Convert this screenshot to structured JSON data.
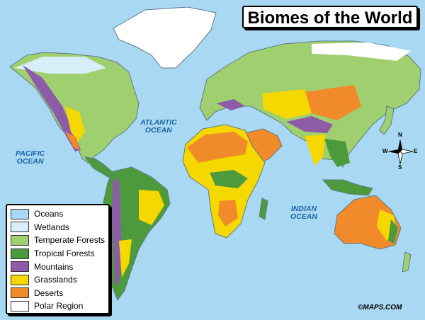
{
  "map": {
    "title": "Biomes of the World",
    "credit": "©MAPS.COM",
    "colors": {
      "ocean": "#a9d9f2",
      "wetlands": "#d8eef8",
      "temperate": "#9fcf6e",
      "tropical": "#4c9a3c",
      "mountain": "#8e5ba8",
      "grassland": "#f5d800",
      "desert": "#f08a2a",
      "polar": "#ffffff",
      "border": "#5c7a8c"
    },
    "oceans": [
      {
        "line1": "PACIFIC",
        "line2": "OCEAN"
      },
      {
        "line1": "ATLANTIC",
        "line2": "OCEAN"
      },
      {
        "line1": "INDIAN",
        "line2": "OCEAN"
      }
    ],
    "compass": {
      "n": "N",
      "s": "S",
      "e": "E",
      "w": "W"
    }
  },
  "legend": {
    "items": [
      {
        "label": "Oceans",
        "color": "#a9d9f2"
      },
      {
        "label": "Wetlands",
        "color": "#d8eef8"
      },
      {
        "label": "Temperate Forests",
        "color": "#9fcf6e"
      },
      {
        "label": "Tropical Forests",
        "color": "#4c9a3c"
      },
      {
        "label": "Mountains",
        "color": "#8e5ba8"
      },
      {
        "label": "Grasslands",
        "color": "#f5d800"
      },
      {
        "label": "Deserts",
        "color": "#f08a2a"
      },
      {
        "label": "Polar Region",
        "color": "#ffffff"
      }
    ]
  }
}
